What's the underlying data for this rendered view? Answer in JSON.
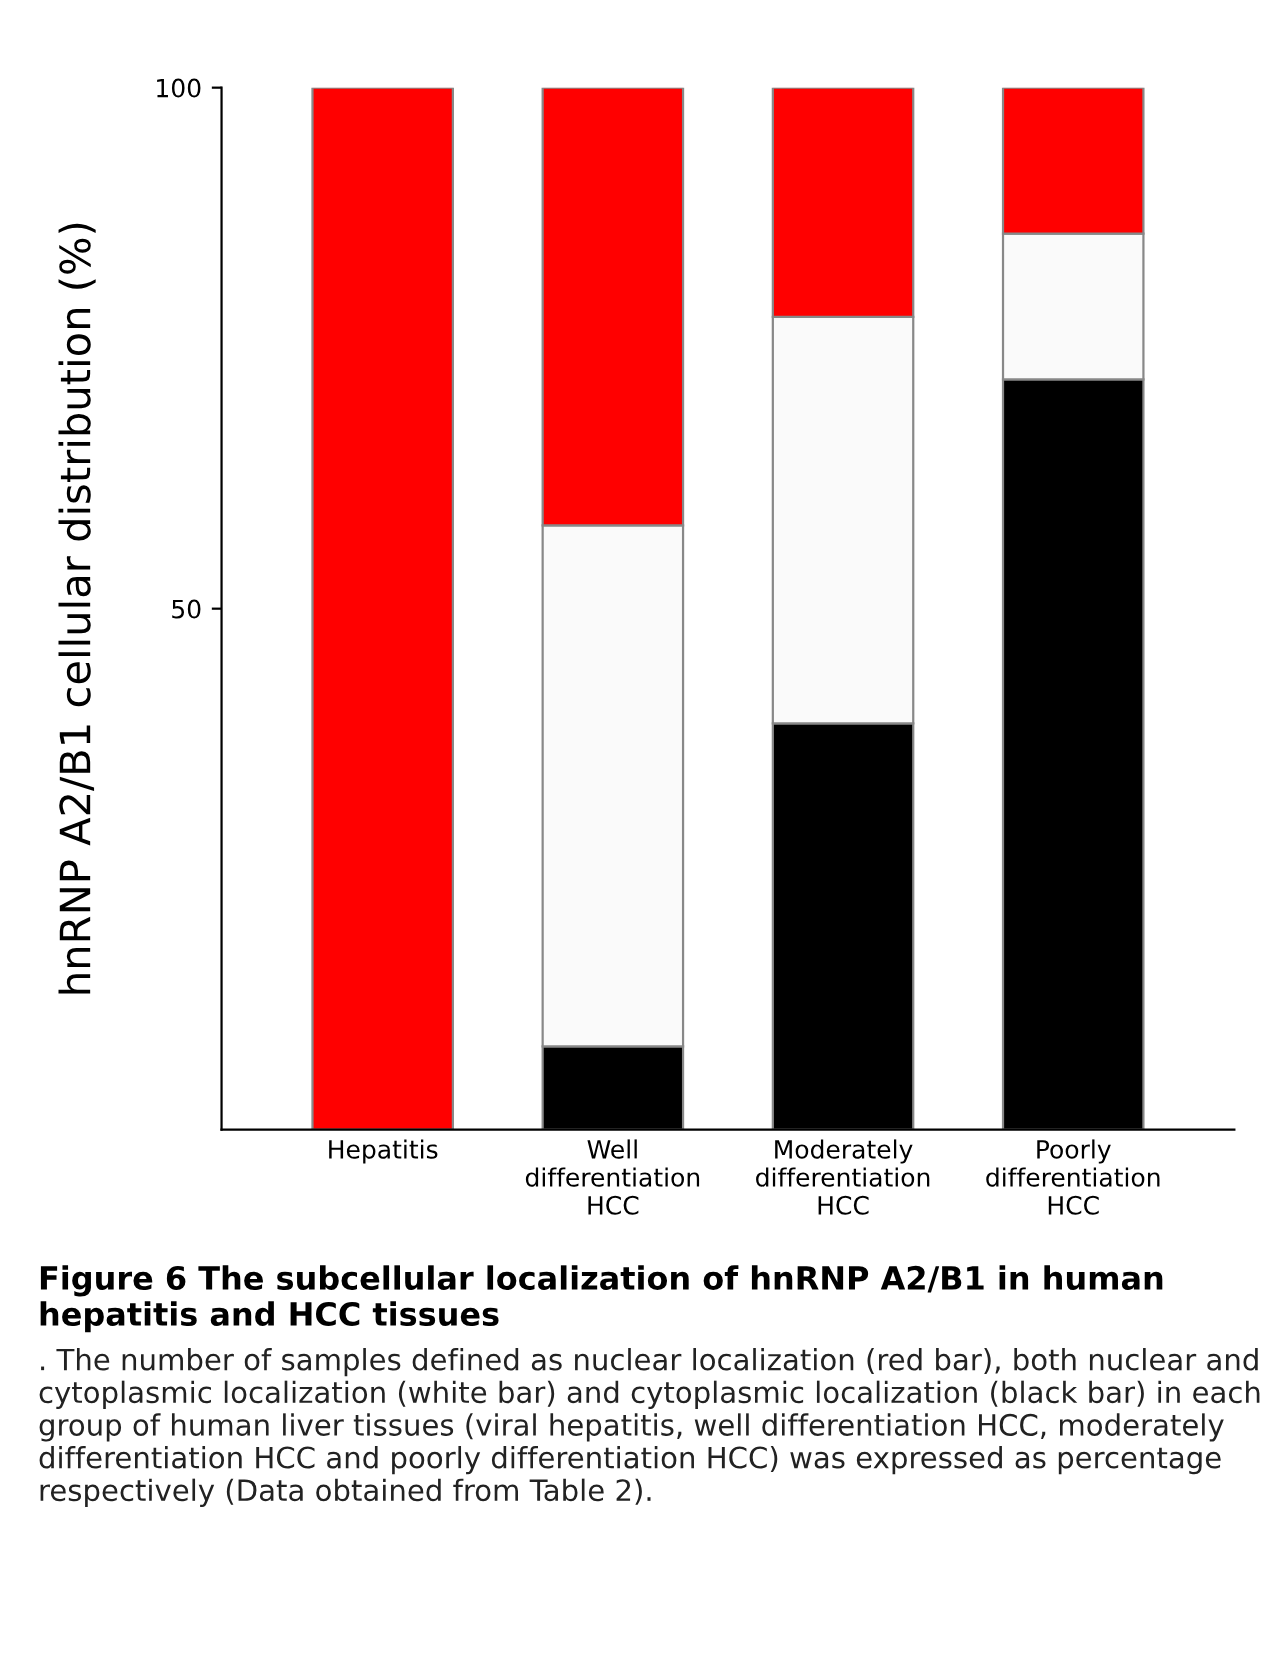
{
  "chart_data": {
    "type": "bar",
    "stacked": true,
    "title": "Figure 6 The subcellular localization of hnRNP A2/B1 in human hepatitis and HCC tissues",
    "ylabel": "hnRNP A2/B1 cellular distribution (%)",
    "categories": [
      "Hepatitis",
      "Well\ndifferentiation\nHCC",
      "Moderately\ndifferentiation\nHCC",
      "Poorly\ndifferentiation\nHCC"
    ],
    "series": [
      {
        "color": "#000000",
        "values": [
          0,
          8,
          39,
          72
        ]
      },
      {
        "color": "#fafafa",
        "values": [
          0,
          50,
          39,
          14
        ]
      },
      {
        "color": "#ff0000",
        "values": [
          100,
          42,
          22,
          14
        ]
      }
    ],
    "ylim": [
      0,
      100
    ],
    "yticks": [
      50,
      100
    ],
    "grid": false,
    "annotations": [
      ". The number of samples defined as nuclear localization (red bar), both nuclear and cytoplasmic localization (white bar) and cytoplasmic localization (black bar) in each group of human liver tissues (viral hepatitis, well differentiation HCC, moderately differentiation HCC and poorly differentiation HCC) was expressed as percentage respectively (Data obtained from Table 2)."
    ]
  }
}
